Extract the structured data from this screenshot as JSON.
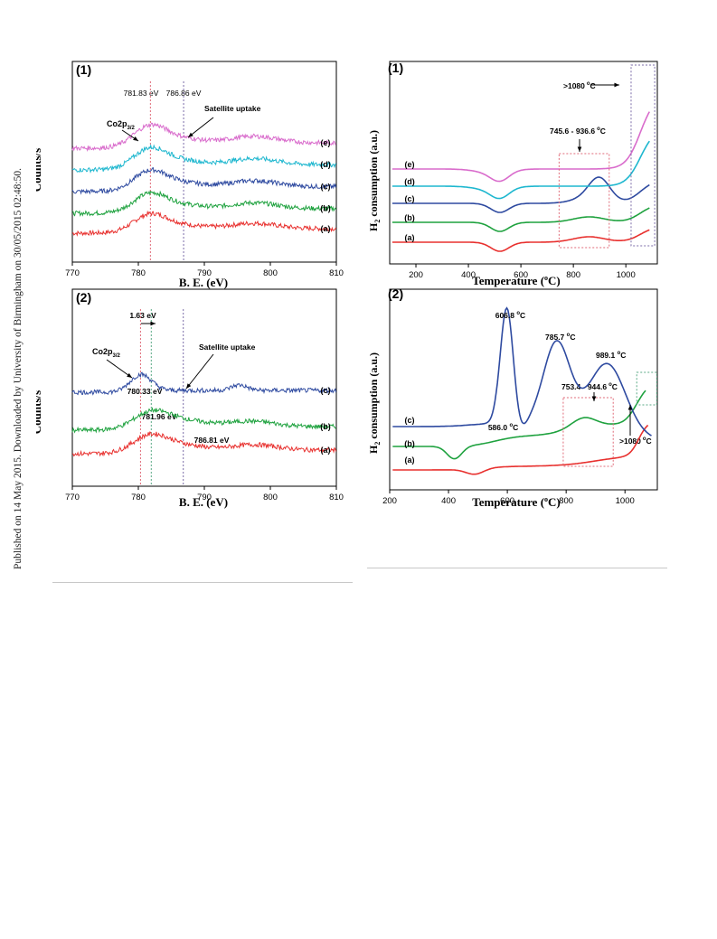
{
  "sidebar_text": "Published on 14 May 2015. Downloaded by University of Birmingham on 30/05/2015 02:48:50.",
  "colors": {
    "a": "#e8312f",
    "b": "#1fa23f",
    "c": "#2e4aa0",
    "d": "#1eb7cf",
    "e": "#d96ccc",
    "guide_red": "#e06a78",
    "guide_blue": "#6f79c8",
    "guide_green": "#5aaa86",
    "guide_gray": "#7b6ca8"
  },
  "chart_data": [
    {
      "id": "xps1",
      "type": "line",
      "panel_label": "(1)",
      "xlabel": "B. E. (eV)",
      "ylabel": "Counts/s",
      "xlim": [
        770,
        810
      ],
      "x_ticks": [
        770,
        780,
        790,
        800,
        810
      ],
      "series_labels": [
        "(a)",
        "(b)",
        "(c)",
        "(d)",
        "(e)"
      ],
      "peak_label": "Co2p",
      "peak_sub": "3/2",
      "guides": [
        {
          "x": 781.83,
          "text": "781.83 eV"
        },
        {
          "x": 786.86,
          "text": "786.86 eV"
        }
      ],
      "satellite_label": "Satellite uptake"
    },
    {
      "id": "xps2",
      "type": "line",
      "panel_label": "(2)",
      "xlabel": "B. E. (eV)",
      "ylabel": "Counts/s",
      "xlim": [
        770,
        810
      ],
      "x_ticks": [
        770,
        780,
        790,
        800,
        810
      ],
      "series_labels": [
        "(a)",
        "(b)",
        "(c)"
      ],
      "peak_label": "Co2p",
      "peak_sub": "3/2",
      "guides": [
        {
          "x": 780.33,
          "text": "780.33 eV"
        },
        {
          "x": 781.96,
          "text": "781.96 eV"
        },
        {
          "x": 786.81,
          "text": "786.81 eV"
        }
      ],
      "shift_label": "1.63 eV",
      "satellite_label": "Satellite uptake"
    },
    {
      "id": "tpr1",
      "type": "line",
      "panel_label": "(1)",
      "xlabel_main": "Temperature (",
      "xlabel_sup": "o",
      "xlabel_end": "C)",
      "ylabel_h": "H",
      "ylabel_sub": "2",
      "ylabel_rest": " consumption (a.u.)",
      "xlim": [
        100,
        1120
      ],
      "x_ticks": [
        200,
        400,
        600,
        800,
        1000
      ],
      "series_labels": [
        "(a)",
        "(b)",
        "(c)",
        "(d)",
        "(e)"
      ],
      "range_label": "745.6 - 936.6",
      "high_label": ">1080",
      "unit_sup": "o",
      "unit_c": "C"
    },
    {
      "id": "tpr2",
      "type": "line",
      "panel_label": "(2)",
      "xlabel_main": "Temperature (",
      "xlabel_sup": "o",
      "xlabel_end": "C)",
      "ylabel_h": "H",
      "ylabel_sub": "2",
      "ylabel_rest": " consumption (a.u.)",
      "xlim": [
        200,
        1110
      ],
      "x_ticks": [
        200,
        400,
        600,
        800,
        1000
      ],
      "series_labels": [
        "(a)",
        "(b)",
        "(c)"
      ],
      "peak_labels": [
        {
          "value": "606.8",
          "x": 598
        },
        {
          "value": "785.7",
          "x": 768
        },
        {
          "value": "989.1",
          "x": 940
        },
        {
          "value": "586.0",
          "x": 586
        }
      ],
      "range_label": "753.4 - 944.6",
      "high_label": ">1080",
      "unit_sup": "o",
      "unit_c": "C"
    }
  ]
}
